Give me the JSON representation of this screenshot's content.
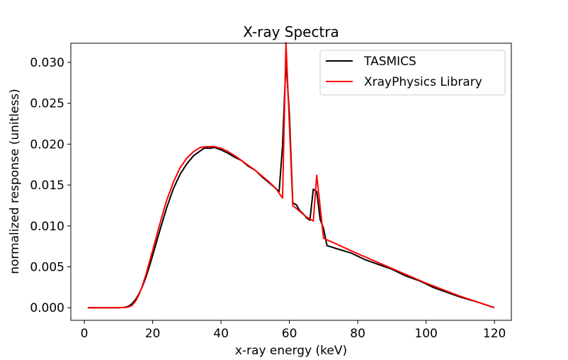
{
  "chart_data": {
    "type": "line",
    "title": "X-ray Spectra",
    "xlabel": "x-ray energy (keV)",
    "ylabel": "normalized response (unitless)",
    "xlim": [
      -3.95,
      124.95
    ],
    "ylim": [
      -0.00154,
      0.03234
    ],
    "xticks": [
      0,
      20,
      40,
      60,
      80,
      100,
      120
    ],
    "xtick_labels": [
      "0",
      "20",
      "40",
      "60",
      "80",
      "100",
      "120"
    ],
    "yticks": [
      0.0,
      0.005,
      0.01,
      0.015,
      0.02,
      0.025,
      0.03
    ],
    "ytick_labels": [
      "0.000",
      "0.005",
      "0.010",
      "0.015",
      "0.020",
      "0.025",
      "0.030"
    ],
    "grid": false,
    "legend_position": "top-right",
    "series": [
      {
        "name": "TASMICS",
        "color": "#000000",
        "points": [
          [
            1,
            0.0
          ],
          [
            10,
            0.0
          ],
          [
            12,
            5e-05
          ],
          [
            13,
            0.0002
          ],
          [
            14,
            0.0005
          ],
          [
            15,
            0.001
          ],
          [
            16,
            0.0017
          ],
          [
            17,
            0.0026
          ],
          [
            18,
            0.0037
          ],
          [
            19,
            0.005
          ],
          [
            20,
            0.0064
          ],
          [
            22,
            0.0093
          ],
          [
            24,
            0.0121
          ],
          [
            26,
            0.0145
          ],
          [
            28,
            0.0163
          ],
          [
            30,
            0.0176
          ],
          [
            32,
            0.0186
          ],
          [
            34,
            0.0192
          ],
          [
            35,
            0.0195
          ],
          [
            37,
            0.0195
          ],
          [
            38,
            0.0196
          ],
          [
            40,
            0.0193
          ],
          [
            42,
            0.0189
          ],
          [
            44,
            0.0184
          ],
          [
            46,
            0.018
          ],
          [
            48,
            0.0173
          ],
          [
            50,
            0.0168
          ],
          [
            52,
            0.016
          ],
          [
            54,
            0.0153
          ],
          [
            56,
            0.0146
          ],
          [
            57,
            0.0142
          ],
          [
            58,
            0.0198
          ],
          [
            59,
            0.0302
          ],
          [
            60,
            0.0237
          ],
          [
            61,
            0.0128
          ],
          [
            62,
            0.0126
          ],
          [
            63,
            0.0119
          ],
          [
            64,
            0.0115
          ],
          [
            65,
            0.011
          ],
          [
            66,
            0.0107
          ],
          [
            67,
            0.0145
          ],
          [
            68,
            0.0142
          ],
          [
            69,
            0.0108
          ],
          [
            70,
            0.0097
          ],
          [
            71,
            0.0076
          ],
          [
            74,
            0.0072
          ],
          [
            78,
            0.0067
          ],
          [
            82,
            0.0059
          ],
          [
            86,
            0.0053
          ],
          [
            90,
            0.0047
          ],
          [
            94,
            0.0039
          ],
          [
            98,
            0.0033
          ],
          [
            102,
            0.0025
          ],
          [
            106,
            0.0019
          ],
          [
            110,
            0.0013
          ],
          [
            115,
            0.0007
          ],
          [
            120,
            0.0
          ]
        ]
      },
      {
        "name": "XrayPhysics Library",
        "color": "#ff0000",
        "points": [
          [
            1,
            0.0
          ],
          [
            10,
            0.0
          ],
          [
            12,
            3e-05
          ],
          [
            13,
            0.0001
          ],
          [
            14,
            0.0003
          ],
          [
            15,
            0.0008
          ],
          [
            16,
            0.0016
          ],
          [
            17,
            0.0027
          ],
          [
            18,
            0.004
          ],
          [
            19,
            0.0055
          ],
          [
            20,
            0.007
          ],
          [
            22,
            0.0101
          ],
          [
            24,
            0.013
          ],
          [
            26,
            0.0153
          ],
          [
            28,
            0.0171
          ],
          [
            30,
            0.0183
          ],
          [
            32,
            0.0191
          ],
          [
            34,
            0.0196
          ],
          [
            36,
            0.0197
          ],
          [
            38,
            0.0197
          ],
          [
            40,
            0.0195
          ],
          [
            42,
            0.0191
          ],
          [
            44,
            0.0186
          ],
          [
            46,
            0.018
          ],
          [
            48,
            0.0174
          ],
          [
            50,
            0.0168
          ],
          [
            52,
            0.0161
          ],
          [
            54,
            0.0154
          ],
          [
            56,
            0.0146
          ],
          [
            58,
            0.0134
          ],
          [
            59,
            0.0324
          ],
          [
            61,
            0.0125
          ],
          [
            63,
            0.0118
          ],
          [
            65,
            0.0111
          ],
          [
            67,
            0.0106
          ],
          [
            68,
            0.0162
          ],
          [
            70,
            0.0085
          ],
          [
            80,
            0.0066
          ],
          [
            90,
            0.0048
          ],
          [
            100,
            0.003
          ],
          [
            110,
            0.0014
          ],
          [
            120,
            0.0
          ]
        ]
      }
    ]
  }
}
